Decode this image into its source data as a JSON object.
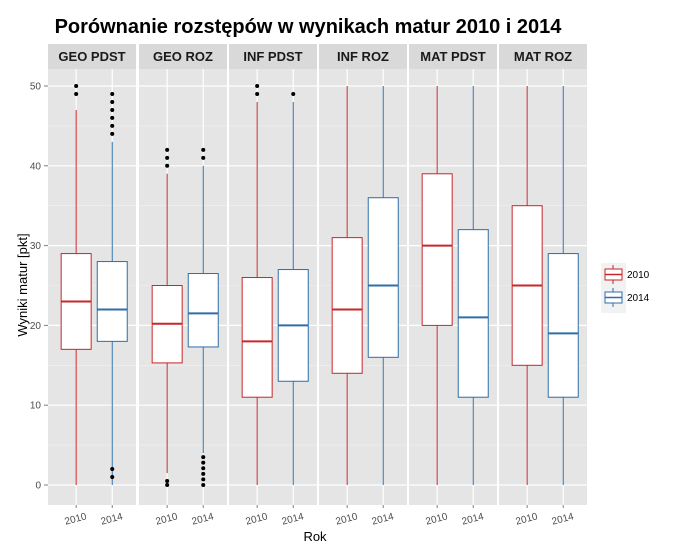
{
  "chart_data": {
    "type": "boxplot",
    "title": "Porównanie rozstępów w wynikach matur 2010 i 2014",
    "xlabel": "Rok",
    "ylabel": "Wyniki matur [pkt]",
    "ylim": [
      -3,
      53
    ],
    "yticks": [
      0,
      10,
      20,
      30,
      40,
      50
    ],
    "categories": [
      "2010",
      "2014"
    ],
    "legend": {
      "position": "right",
      "entries": [
        "2010",
        "2014"
      ]
    },
    "colors": {
      "2010": "#c8272b",
      "2014": "#2f6ea8"
    },
    "facets": [
      {
        "label": "GEO PDST",
        "boxes": [
          {
            "year": "2010",
            "min": 0,
            "q1": 17,
            "median": 23,
            "q3": 29,
            "max": 47,
            "outliers": [
              49,
              50
            ]
          },
          {
            "year": "2014",
            "min": 0,
            "q1": 18,
            "median": 22,
            "q3": 28,
            "max": 43,
            "outliers": [
              44,
              45,
              46,
              47,
              48,
              49,
              1,
              2
            ]
          }
        ]
      },
      {
        "label": "GEO ROZ",
        "boxes": [
          {
            "year": "2010",
            "min": 1.5,
            "q1": 15.3,
            "median": 20.2,
            "q3": 25,
            "max": 39,
            "outliers": [
              40,
              41,
              42,
              0,
              0.5
            ]
          },
          {
            "year": "2014",
            "min": 4,
            "q1": 17.3,
            "median": 21.5,
            "q3": 26.5,
            "max": 40,
            "outliers": [
              41,
              42,
              0,
              0.7,
              1.4,
              2.1,
              2.8,
              3.5
            ]
          }
        ]
      },
      {
        "label": "INF PDST",
        "boxes": [
          {
            "year": "2010",
            "min": 0,
            "q1": 11,
            "median": 18,
            "q3": 26,
            "max": 48,
            "outliers": [
              49,
              50
            ]
          },
          {
            "year": "2014",
            "min": 0,
            "q1": 13,
            "median": 20,
            "q3": 27,
            "max": 48,
            "outliers": [
              49
            ]
          }
        ]
      },
      {
        "label": "INF ROZ",
        "boxes": [
          {
            "year": "2010",
            "min": 0,
            "q1": 14,
            "median": 22,
            "q3": 31,
            "max": 50,
            "outliers": []
          },
          {
            "year": "2014",
            "min": 0,
            "q1": 16,
            "median": 25,
            "q3": 36,
            "max": 50,
            "outliers": []
          }
        ]
      },
      {
        "label": "MAT PDST",
        "boxes": [
          {
            "year": "2010",
            "min": 0,
            "q1": 20,
            "median": 30,
            "q3": 39,
            "max": 50,
            "outliers": []
          },
          {
            "year": "2014",
            "min": 0,
            "q1": 11,
            "median": 21,
            "q3": 32,
            "max": 50,
            "outliers": []
          }
        ]
      },
      {
        "label": "MAT ROZ",
        "boxes": [
          {
            "year": "2010",
            "min": 0,
            "q1": 15,
            "median": 25,
            "q3": 35,
            "max": 50,
            "outliers": []
          },
          {
            "year": "2014",
            "min": 0,
            "q1": 11,
            "median": 19,
            "q3": 29,
            "max": 50,
            "outliers": []
          }
        ]
      }
    ]
  }
}
